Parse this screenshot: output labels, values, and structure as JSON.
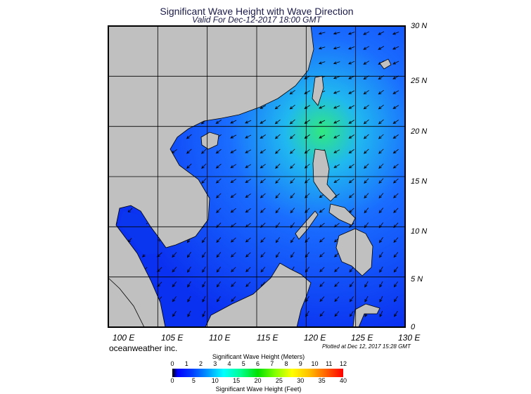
{
  "title": "Significant Wave Height with Wave Direction",
  "subtitle": "Valid For Dec-12-2017 18:00 GMT",
  "map": {
    "extent": {
      "lon": [
        100,
        130
      ],
      "lat": [
        0,
        30
      ]
    },
    "lat_labels": [
      "30 N",
      "25 N",
      "20 N",
      "15 N",
      "10 N",
      "5 N",
      "0"
    ],
    "lon_labels": [
      "100 E",
      "105 E",
      "110 E",
      "115 E",
      "120 E",
      "125 E",
      "130 E"
    ],
    "grid_interval_deg": 5,
    "colors": {
      "land": "#c0c0c0",
      "ocean_low": "#0a3cff",
      "ocean_mid": "#1e8cff",
      "ocean_high": "#40f080"
    },
    "dominant_wave_direction": "toward southwest (NE monsoon)"
  },
  "brand": "oceanweather inc.",
  "plotted": "Plotted at Dec 12, 2017 15:28 GMT",
  "colorbar": {
    "title_meters": "Significant Wave Height (Meters)",
    "title_feet": "Significant Wave Height (Feet)",
    "meters_ticks": [
      "0",
      "1",
      "2",
      "3",
      "4",
      "5",
      "6",
      "7",
      "8",
      "9",
      "10",
      "11",
      "12"
    ],
    "feet_ticks": [
      "0",
      "5",
      "10",
      "15",
      "20",
      "25",
      "30",
      "35",
      "40"
    ]
  }
}
